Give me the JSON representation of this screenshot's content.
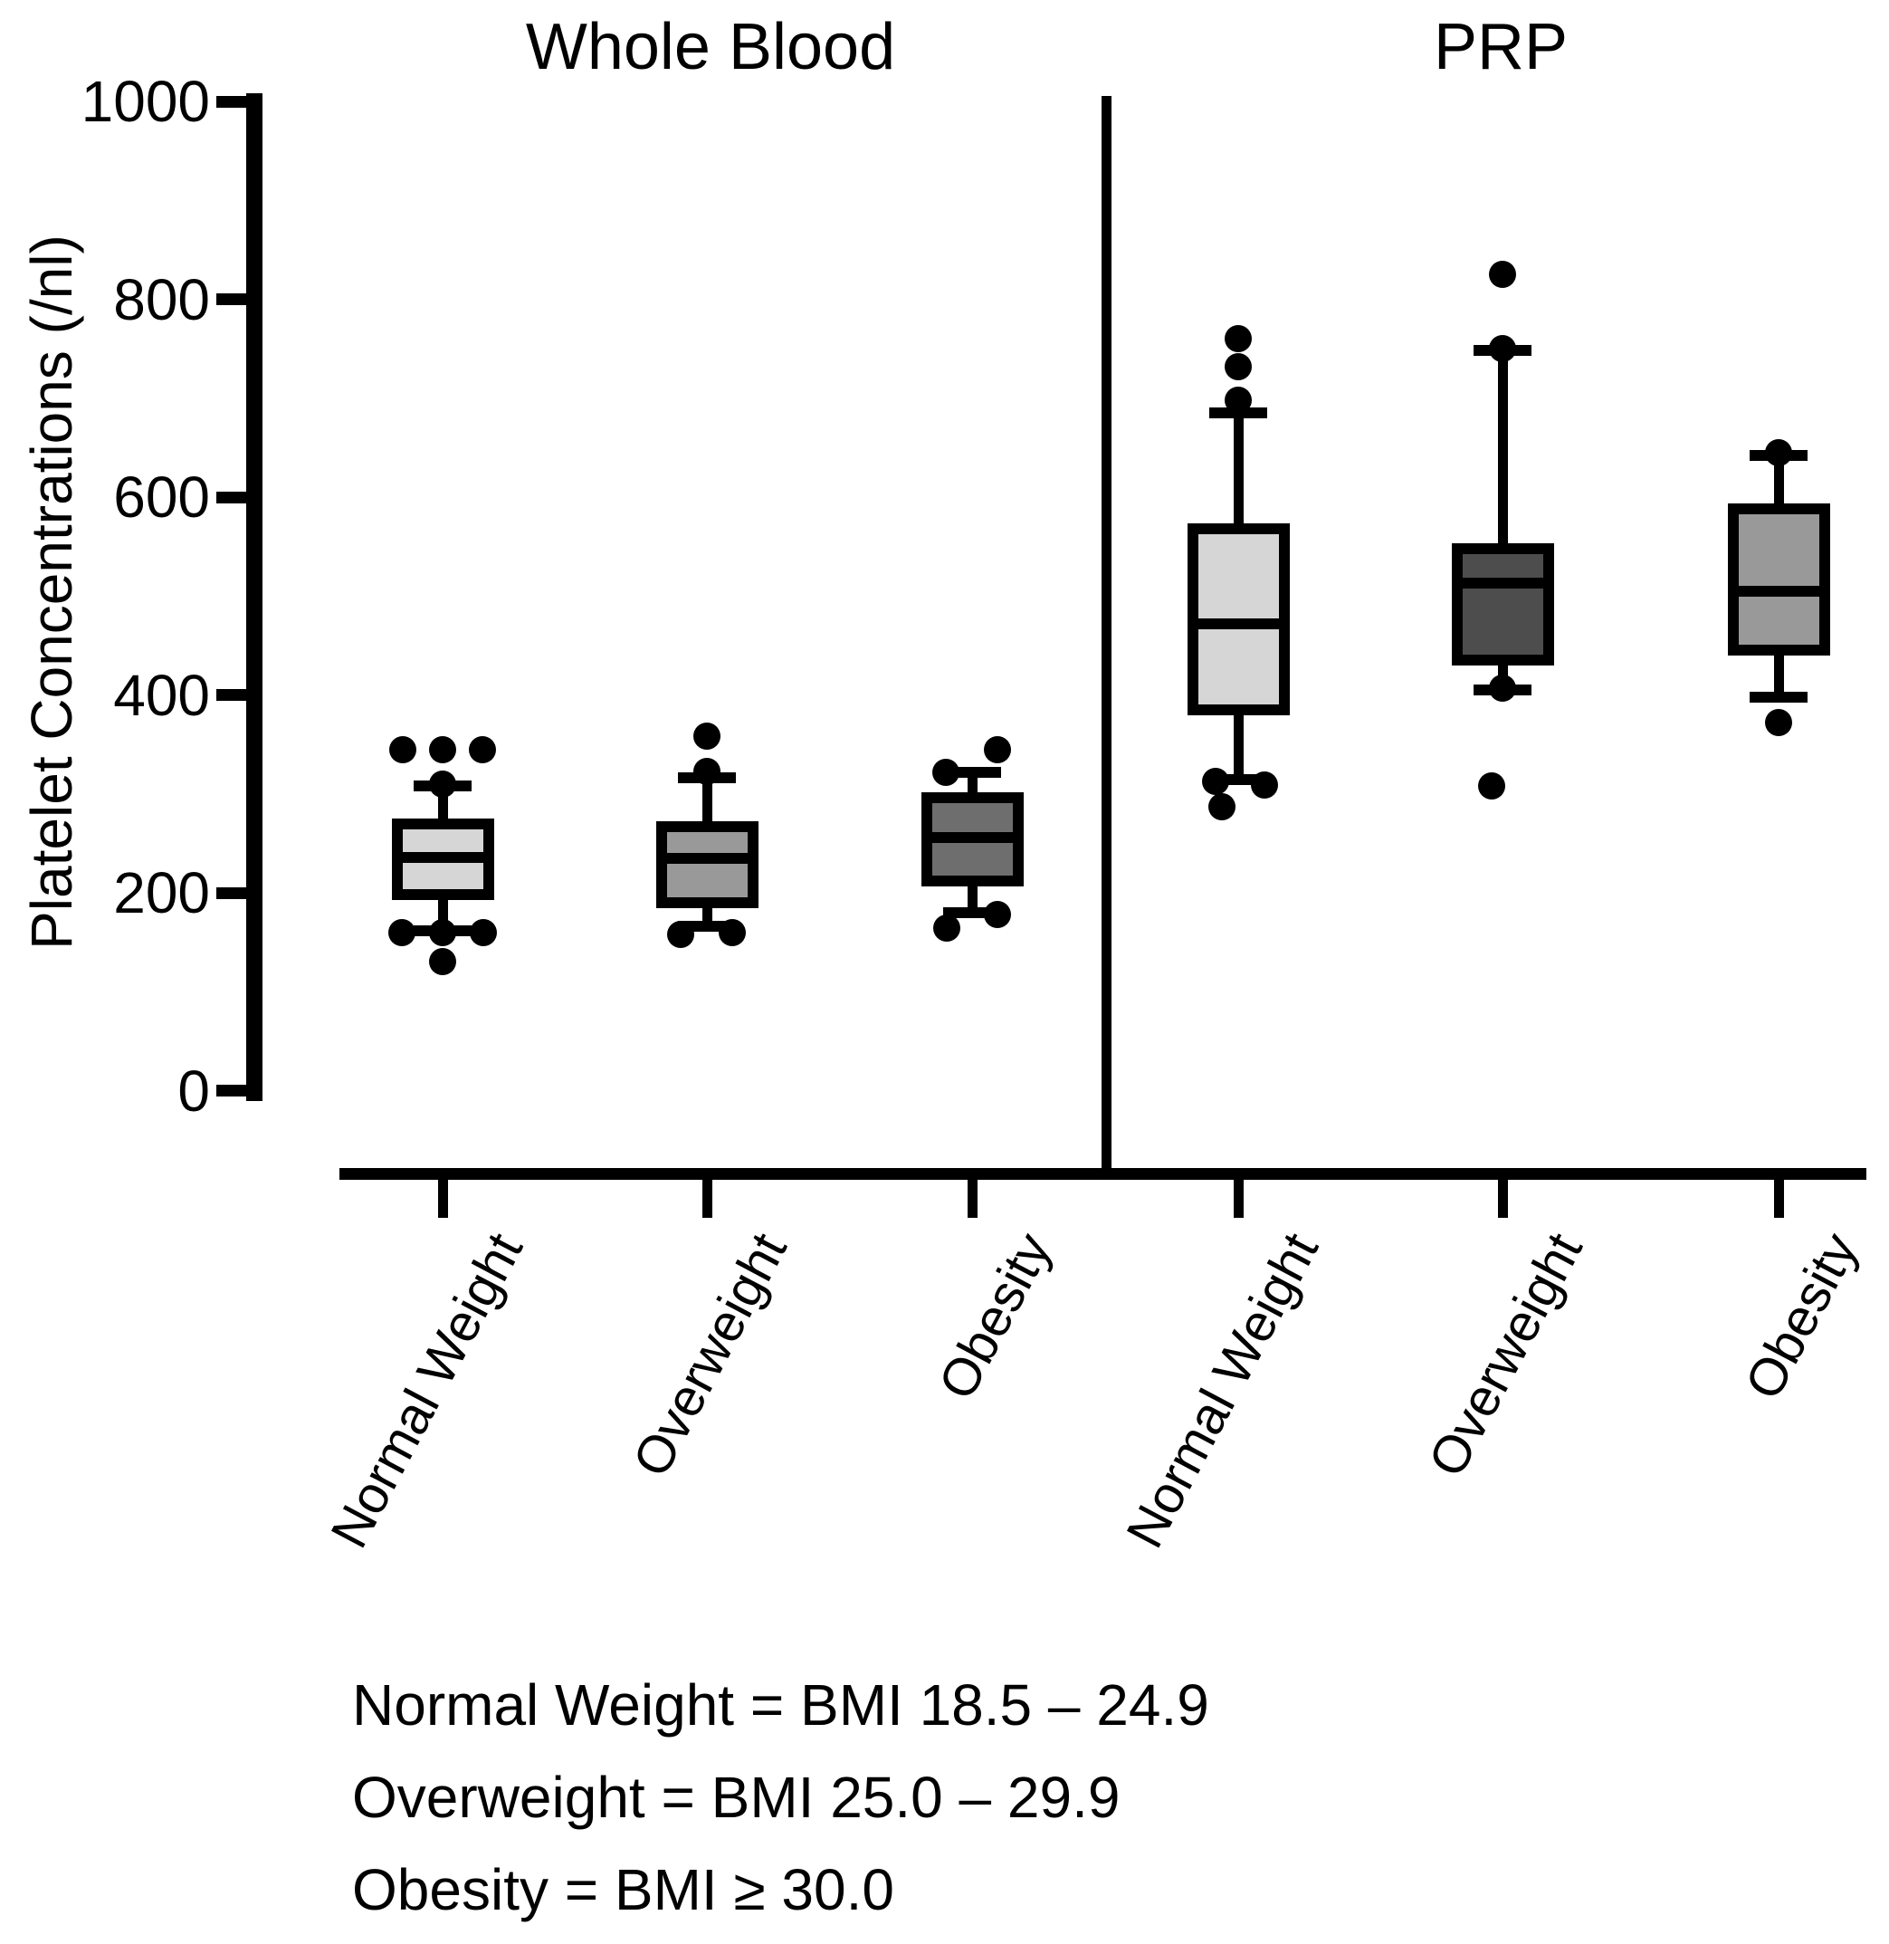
{
  "figure": {
    "background": "#ffffff",
    "ink_color": "#000000",
    "legend_lines": [
      "Normal Weight = BMI 18.5 – 24.9",
      "Overweight = BMI 25.0 – 29.9",
      "Obesity = BMI ≥ 30.0"
    ]
  },
  "chart_data": {
    "type": "box",
    "title": "",
    "ylabel": "Platelet Concentrations (/nl)",
    "xlabel": "",
    "ylim": [
      0,
      1000
    ],
    "yticks": [
      1000,
      800,
      600,
      400,
      200,
      0
    ],
    "grid": false,
    "categories": [
      "Normal Weight",
      "Overweight",
      "Obesity"
    ],
    "panels": [
      {
        "title": "Whole Blood",
        "boxes": [
          {
            "category": "Normal Weight",
            "fill": "#d6d6d6",
            "whisker_low": 162,
            "q1": 198,
            "median": 236,
            "q3": 270,
            "whisker_high": 308,
            "outliers_high": [
              {
                "v": 345,
                "dx": -44
              },
              {
                "v": 345,
                "dx": 0
              },
              {
                "v": 345,
                "dx": 44
              },
              {
                "v": 310,
                "dx": 0
              }
            ],
            "outliers_low": [
              {
                "v": 160,
                "dx": -45
              },
              {
                "v": 160,
                "dx": 0
              },
              {
                "v": 160,
                "dx": 45
              },
              {
                "v": 130,
                "dx": 0
              }
            ]
          },
          {
            "category": "Overweight",
            "fill": "#999999",
            "whisker_low": 166,
            "q1": 190,
            "median": 235,
            "q3": 267,
            "whisker_high": 316,
            "outliers_high": [
              {
                "v": 358,
                "dx": 0
              },
              {
                "v": 323,
                "dx": 0
              }
            ],
            "outliers_low": [
              {
                "v": 158,
                "dx": -29
              },
              {
                "v": 160,
                "dx": 28
              }
            ]
          },
          {
            "category": "Obesity",
            "fill": "#6e6e6e",
            "whisker_low": 180,
            "q1": 212,
            "median": 256,
            "q3": 296,
            "whisker_high": 322,
            "outliers_high": [
              {
                "v": 345,
                "dx": 28
              },
              {
                "v": 322,
                "dx": -29
              }
            ],
            "outliers_low": [
              {
                "v": 178,
                "dx": 28
              },
              {
                "v": 164,
                "dx": -28
              }
            ]
          }
        ]
      },
      {
        "title": "PRP",
        "boxes": [
          {
            "category": "Normal Weight",
            "fill": "#d6d6d6",
            "whisker_low": 314,
            "q1": 385,
            "median": 472,
            "q3": 568,
            "whisker_high": 685,
            "outliers_high": [
              {
                "v": 760,
                "dx": 0
              },
              {
                "v": 732,
                "dx": 0
              },
              {
                "v": 698,
                "dx": 0
              }
            ],
            "outliers_low": [
              {
                "v": 313,
                "dx": -25
              },
              {
                "v": 309,
                "dx": 29
              },
              {
                "v": 287,
                "dx": -18
              }
            ]
          },
          {
            "category": "Overweight",
            "fill": "#4d4d4d",
            "whisker_low": 405,
            "q1": 435,
            "median": 513,
            "q3": 548,
            "whisker_high": 748,
            "outliers_high": [
              {
                "v": 825,
                "dx": 0
              },
              {
                "v": 750,
                "dx": 0
              }
            ],
            "outliers_low": [
              {
                "v": 407,
                "dx": 0
              },
              {
                "v": 308,
                "dx": -12
              }
            ]
          },
          {
            "category": "Obesity",
            "fill": "#999999",
            "whisker_low": 398,
            "q1": 445,
            "median": 505,
            "q3": 588,
            "whisker_high": 642,
            "outliers_high": [
              {
                "v": 645,
                "dx": 0
              }
            ],
            "outliers_low": [
              {
                "v": 372,
                "dx": 0
              }
            ]
          }
        ]
      }
    ]
  }
}
